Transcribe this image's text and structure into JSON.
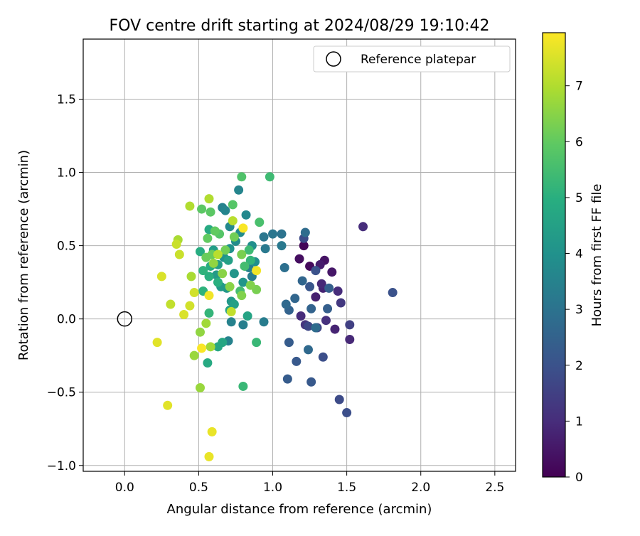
{
  "chart_data": {
    "type": "scatter",
    "title": "FOV centre drift starting at 2024/08/29 19:10:42",
    "xlabel": "Angular distance from reference (arcmin)",
    "ylabel": "Rotation from reference (arcmin)",
    "xlim": [
      -0.28,
      2.64
    ],
    "ylim": [
      -1.04,
      1.91
    ],
    "xticks": [
      0.0,
      0.5,
      1.0,
      1.5,
      2.0,
      2.5
    ],
    "xtick_labels": [
      "0.0",
      "0.5",
      "1.0",
      "1.5",
      "2.0",
      "2.5"
    ],
    "yticks": [
      -1.0,
      -0.5,
      0.0,
      0.5,
      1.0,
      1.5
    ],
    "ytick_labels": [
      "−1.0",
      "−0.5",
      "0.0",
      "0.5",
      "1.0",
      "1.5"
    ],
    "grid": true,
    "legend": {
      "placement": "upper right",
      "entries": [
        "Reference platepar"
      ]
    },
    "reference": {
      "x": 0.0,
      "y": 0.0,
      "marker": "open-circle"
    },
    "colorbar": {
      "label": "Hours from first FF file",
      "colormap": "viridis",
      "range": [
        0,
        7.95
      ],
      "ticks": [
        0,
        1,
        2,
        3,
        4,
        5,
        6,
        7
      ],
      "tick_labels": [
        "0",
        "1",
        "2",
        "3",
        "4",
        "5",
        "6",
        "7"
      ]
    },
    "points": [
      {
        "x": 1.21,
        "y": 0.5,
        "h": 0.1
      },
      {
        "x": 1.25,
        "y": 0.36,
        "h": 0.2
      },
      {
        "x": 1.18,
        "y": 0.41,
        "h": 0.3
      },
      {
        "x": 1.35,
        "y": 0.4,
        "h": 0.4
      },
      {
        "x": 1.4,
        "y": 0.32,
        "h": 0.5
      },
      {
        "x": 1.32,
        "y": 0.37,
        "h": 0.6
      },
      {
        "x": 1.29,
        "y": 0.15,
        "h": 0.7
      },
      {
        "x": 1.34,
        "y": 0.21,
        "h": 0.8
      },
      {
        "x": 1.33,
        "y": 0.24,
        "h": 0.9
      },
      {
        "x": 1.44,
        "y": 0.19,
        "h": 1.0
      },
      {
        "x": 1.52,
        "y": -0.14,
        "h": 0.9
      },
      {
        "x": 1.42,
        "y": -0.07,
        "h": 0.8
      },
      {
        "x": 1.36,
        "y": -0.01,
        "h": 1.1
      },
      {
        "x": 1.19,
        "y": 0.02,
        "h": 1.0
      },
      {
        "x": 1.22,
        "y": -0.04,
        "h": 1.2
      },
      {
        "x": 1.61,
        "y": 0.63,
        "h": 1.0
      },
      {
        "x": 1.46,
        "y": 0.11,
        "h": 1.3
      },
      {
        "x": 1.52,
        "y": -0.04,
        "h": 1.5
      },
      {
        "x": 1.3,
        "y": -0.06,
        "h": 1.6
      },
      {
        "x": 1.24,
        "y": -0.05,
        "h": 1.7
      },
      {
        "x": 1.21,
        "y": 0.55,
        "h": 1.8
      },
      {
        "x": 1.45,
        "y": -0.55,
        "h": 1.8
      },
      {
        "x": 1.5,
        "y": -0.64,
        "h": 1.9
      },
      {
        "x": 1.34,
        "y": -0.26,
        "h": 1.9
      },
      {
        "x": 1.81,
        "y": 0.18,
        "h": 2.0
      },
      {
        "x": 1.29,
        "y": 0.33,
        "h": 2.0
      },
      {
        "x": 1.25,
        "y": 0.22,
        "h": 2.1
      },
      {
        "x": 1.16,
        "y": -0.29,
        "h": 2.2
      },
      {
        "x": 1.26,
        "y": -0.43,
        "h": 2.2
      },
      {
        "x": 1.1,
        "y": -0.41,
        "h": 2.3
      },
      {
        "x": 1.11,
        "y": -0.16,
        "h": 2.3
      },
      {
        "x": 1.37,
        "y": 0.07,
        "h": 2.4
      },
      {
        "x": 1.38,
        "y": 0.21,
        "h": 2.4
      },
      {
        "x": 1.26,
        "y": 0.07,
        "h": 2.5
      },
      {
        "x": 1.11,
        "y": 0.06,
        "h": 2.5
      },
      {
        "x": 1.15,
        "y": 0.14,
        "h": 2.6
      },
      {
        "x": 1.2,
        "y": 0.26,
        "h": 2.6
      },
      {
        "x": 1.09,
        "y": 0.1,
        "h": 2.7
      },
      {
        "x": 1.24,
        "y": -0.21,
        "h": 2.7
      },
      {
        "x": 1.29,
        "y": -0.06,
        "h": 2.8
      },
      {
        "x": 1.22,
        "y": 0.59,
        "h": 2.8
      },
      {
        "x": 1.08,
        "y": 0.35,
        "h": 2.9
      },
      {
        "x": 1.06,
        "y": 0.58,
        "h": 3.0
      },
      {
        "x": 1.0,
        "y": 0.58,
        "h": 3.1
      },
      {
        "x": 0.94,
        "y": 0.56,
        "h": 3.1
      },
      {
        "x": 0.95,
        "y": 0.48,
        "h": 3.2
      },
      {
        "x": 1.06,
        "y": 0.5,
        "h": 3.2
      },
      {
        "x": 0.94,
        "y": -0.02,
        "h": 3.3
      },
      {
        "x": 0.86,
        "y": 0.29,
        "h": 3.3
      },
      {
        "x": 0.84,
        "y": 0.35,
        "h": 3.4
      },
      {
        "x": 0.8,
        "y": -0.04,
        "h": 3.4
      },
      {
        "x": 0.72,
        "y": -0.02,
        "h": 3.5
      },
      {
        "x": 0.7,
        "y": -0.15,
        "h": 3.5
      },
      {
        "x": 0.66,
        "y": 0.76,
        "h": 3.5
      },
      {
        "x": 0.68,
        "y": 0.74,
        "h": 3.6
      },
      {
        "x": 0.77,
        "y": 0.88,
        "h": 3.6
      },
      {
        "x": 0.82,
        "y": 0.71,
        "h": 3.7
      },
      {
        "x": 0.71,
        "y": 0.63,
        "h": 3.7
      },
      {
        "x": 0.78,
        "y": 0.59,
        "h": 3.8
      },
      {
        "x": 0.75,
        "y": 0.53,
        "h": 3.8
      },
      {
        "x": 0.86,
        "y": 0.5,
        "h": 3.9
      },
      {
        "x": 0.88,
        "y": 0.39,
        "h": 3.9
      },
      {
        "x": 0.71,
        "y": 0.48,
        "h": 4.0
      },
      {
        "x": 0.67,
        "y": 0.42,
        "h": 4.0
      },
      {
        "x": 0.74,
        "y": 0.31,
        "h": 4.1
      },
      {
        "x": 0.8,
        "y": 0.25,
        "h": 4.1
      },
      {
        "x": 0.69,
        "y": 0.21,
        "h": 4.2
      },
      {
        "x": 0.72,
        "y": 0.12,
        "h": 4.2
      },
      {
        "x": 0.65,
        "y": 0.22,
        "h": 4.3
      },
      {
        "x": 0.62,
        "y": 0.3,
        "h": 4.3
      },
      {
        "x": 0.6,
        "y": 0.47,
        "h": 4.4
      },
      {
        "x": 0.63,
        "y": 0.37,
        "h": 4.4
      },
      {
        "x": 0.7,
        "y": 0.4,
        "h": 4.5
      },
      {
        "x": 0.74,
        "y": 0.1,
        "h": 4.5
      },
      {
        "x": 0.71,
        "y": 0.06,
        "h": 4.6
      },
      {
        "x": 0.83,
        "y": 0.02,
        "h": 4.6
      },
      {
        "x": 0.66,
        "y": -0.16,
        "h": 4.7
      },
      {
        "x": 0.63,
        "y": -0.19,
        "h": 4.7
      },
      {
        "x": 0.56,
        "y": -0.3,
        "h": 4.8
      },
      {
        "x": 0.57,
        "y": 0.61,
        "h": 4.8
      },
      {
        "x": 0.51,
        "y": 0.46,
        "h": 4.9
      },
      {
        "x": 0.58,
        "y": 0.36,
        "h": 4.9
      },
      {
        "x": 0.63,
        "y": 0.25,
        "h": 5.0
      },
      {
        "x": 0.57,
        "y": 0.29,
        "h": 5.0
      },
      {
        "x": 0.53,
        "y": 0.33,
        "h": 5.1
      },
      {
        "x": 0.53,
        "y": 0.19,
        "h": 5.1
      },
      {
        "x": 0.57,
        "y": 0.04,
        "h": 5.2
      },
      {
        "x": 0.85,
        "y": 0.4,
        "h": 5.2
      },
      {
        "x": 0.8,
        "y": -0.46,
        "h": 5.3
      },
      {
        "x": 0.89,
        "y": -0.16,
        "h": 5.3
      },
      {
        "x": 0.98,
        "y": 0.97,
        "h": 5.4
      },
      {
        "x": 0.84,
        "y": 0.47,
        "h": 5.4
      },
      {
        "x": 0.81,
        "y": 0.36,
        "h": 5.5
      },
      {
        "x": 0.78,
        "y": 0.19,
        "h": 5.5
      },
      {
        "x": 0.91,
        "y": 0.66,
        "h": 5.6
      },
      {
        "x": 0.79,
        "y": 0.97,
        "h": 5.7
      },
      {
        "x": 0.73,
        "y": 0.78,
        "h": 5.8
      },
      {
        "x": 0.64,
        "y": 0.58,
        "h": 5.8
      },
      {
        "x": 0.52,
        "y": 0.75,
        "h": 5.9
      },
      {
        "x": 0.58,
        "y": 0.73,
        "h": 5.9
      },
      {
        "x": 0.61,
        "y": 0.6,
        "h": 6.0
      },
      {
        "x": 0.56,
        "y": 0.55,
        "h": 6.0
      },
      {
        "x": 0.59,
        "y": 0.44,
        "h": 6.1
      },
      {
        "x": 0.55,
        "y": 0.42,
        "h": 6.1
      },
      {
        "x": 0.68,
        "y": 0.47,
        "h": 6.2
      },
      {
        "x": 0.74,
        "y": 0.56,
        "h": 6.2
      },
      {
        "x": 0.79,
        "y": 0.44,
        "h": 6.3
      },
      {
        "x": 0.89,
        "y": 0.2,
        "h": 6.3
      },
      {
        "x": 0.85,
        "y": 0.23,
        "h": 6.4
      },
      {
        "x": 0.79,
        "y": 0.16,
        "h": 6.4
      },
      {
        "x": 0.71,
        "y": 0.22,
        "h": 6.5
      },
      {
        "x": 0.66,
        "y": 0.31,
        "h": 6.5
      },
      {
        "x": 0.6,
        "y": 0.38,
        "h": 6.6
      },
      {
        "x": 0.51,
        "y": -0.09,
        "h": 6.6
      },
      {
        "x": 0.47,
        "y": -0.25,
        "h": 6.7
      },
      {
        "x": 0.51,
        "y": -0.47,
        "h": 6.7
      },
      {
        "x": 0.58,
        "y": -0.19,
        "h": 6.8
      },
      {
        "x": 0.55,
        "y": -0.03,
        "h": 6.8
      },
      {
        "x": 0.45,
        "y": 0.29,
        "h": 6.9
      },
      {
        "x": 0.36,
        "y": 0.54,
        "h": 6.9
      },
      {
        "x": 0.57,
        "y": 0.82,
        "h": 7.0
      },
      {
        "x": 0.44,
        "y": 0.77,
        "h": 7.0
      },
      {
        "x": 0.63,
        "y": 0.44,
        "h": 7.1
      },
      {
        "x": 0.73,
        "y": 0.67,
        "h": 7.1
      },
      {
        "x": 0.72,
        "y": 0.05,
        "h": 7.2
      },
      {
        "x": 0.31,
        "y": 0.1,
        "h": 7.2
      },
      {
        "x": 0.37,
        "y": 0.44,
        "h": 7.3
      },
      {
        "x": 0.35,
        "y": 0.51,
        "h": 7.3
      },
      {
        "x": 0.44,
        "y": 0.09,
        "h": 7.4
      },
      {
        "x": 0.47,
        "y": 0.18,
        "h": 7.4
      },
      {
        "x": 0.4,
        "y": 0.03,
        "h": 7.5
      },
      {
        "x": 0.25,
        "y": 0.29,
        "h": 7.5
      },
      {
        "x": 0.22,
        "y": -0.16,
        "h": 7.6
      },
      {
        "x": 0.29,
        "y": -0.59,
        "h": 7.6
      },
      {
        "x": 0.59,
        "y": -0.77,
        "h": 7.7
      },
      {
        "x": 0.57,
        "y": -0.94,
        "h": 7.7
      },
      {
        "x": 0.89,
        "y": 0.33,
        "h": 7.8
      },
      {
        "x": 0.57,
        "y": 0.16,
        "h": 7.8
      },
      {
        "x": 0.52,
        "y": -0.2,
        "h": 7.9
      },
      {
        "x": 0.8,
        "y": 0.62,
        "h": 7.9
      }
    ]
  }
}
